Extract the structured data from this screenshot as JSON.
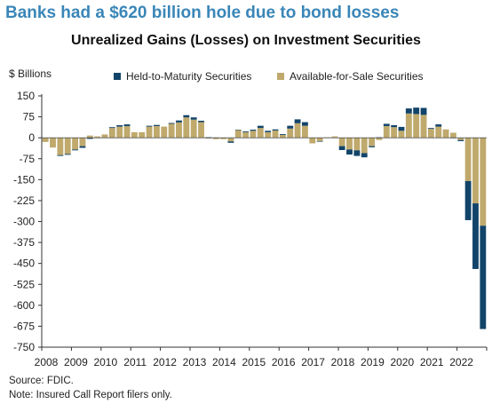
{
  "headline": "Banks had a $620 billion hole due to bond losses",
  "source": "Source: FDIC.",
  "note": "Note: Insured Call Report filers only.",
  "colors": {
    "htm": "#12446a",
    "afs": "#bfa96c",
    "headline": "#3a86b8"
  },
  "chart_data": {
    "type": "bar",
    "stacked": true,
    "title": "Unrealized Gains (Losses) on Investment Securities",
    "ylabel": "$ Billions",
    "ylim": [
      -750,
      150
    ],
    "yticks": [
      150,
      75,
      0,
      -75,
      -150,
      -225,
      -300,
      -375,
      -450,
      -525,
      -600,
      -675,
      -750
    ],
    "xtick_labels": [
      "2008",
      "2009",
      "2010",
      "2011",
      "2012",
      "2013",
      "2014",
      "2015",
      "2016",
      "2017",
      "2018",
      "2019",
      "2020",
      "2021",
      "2022"
    ],
    "grid": false,
    "legend": "top",
    "categories": [
      "2008Q1",
      "2008Q2",
      "2008Q3",
      "2008Q4",
      "2009Q1",
      "2009Q2",
      "2009Q3",
      "2009Q4",
      "2010Q1",
      "2010Q2",
      "2010Q3",
      "2010Q4",
      "2011Q1",
      "2011Q2",
      "2011Q3",
      "2011Q4",
      "2012Q1",
      "2012Q2",
      "2012Q3",
      "2012Q4",
      "2013Q1",
      "2013Q2",
      "2013Q3",
      "2013Q4",
      "2014Q1",
      "2014Q2",
      "2014Q3",
      "2014Q4",
      "2015Q1",
      "2015Q2",
      "2015Q3",
      "2015Q4",
      "2016Q1",
      "2016Q2",
      "2016Q3",
      "2016Q4",
      "2017Q1",
      "2017Q2",
      "2017Q3",
      "2017Q4",
      "2018Q1",
      "2018Q2",
      "2018Q3",
      "2018Q4",
      "2019Q1",
      "2019Q2",
      "2019Q3",
      "2019Q4",
      "2020Q1",
      "2020Q2",
      "2020Q3",
      "2020Q4",
      "2021Q1",
      "2021Q2",
      "2021Q3",
      "2021Q4",
      "2022Q1",
      "2022Q2",
      "2022Q3",
      "2022Q4"
    ],
    "series": [
      {
        "name": "Held-to-Maturity Securities",
        "values": [
          0,
          0,
          -3,
          -3,
          -3,
          -6,
          -4,
          0,
          0,
          3,
          5,
          6,
          0,
          0,
          3,
          4,
          0,
          3,
          7,
          8,
          8,
          5,
          2,
          1,
          0,
          -5,
          1,
          3,
          4,
          8,
          5,
          4,
          3,
          10,
          14,
          13,
          0,
          -2,
          0,
          0,
          -14,
          -18,
          -20,
          -15,
          -4,
          2,
          8,
          7,
          14,
          18,
          23,
          25,
          3,
          8,
          0,
          -1,
          -4,
          -140,
          -235,
          -370
        ],
        "role": "htm"
      },
      {
        "name": "Available-for-Sale Securities",
        "values": [
          -15,
          -35,
          -62,
          -58,
          -42,
          -30,
          8,
          5,
          12,
          35,
          40,
          42,
          20,
          20,
          40,
          42,
          40,
          50,
          55,
          73,
          65,
          56,
          -3,
          -5,
          -5,
          -13,
          28,
          20,
          25,
          35,
          20,
          26,
          10,
          33,
          52,
          43,
          -20,
          -12,
          2,
          5,
          -30,
          -42,
          -45,
          -55,
          -30,
          -8,
          42,
          38,
          25,
          87,
          85,
          82,
          32,
          40,
          30,
          18,
          -8,
          -155,
          -235,
          -315
        ],
        "role": "afs"
      }
    ]
  }
}
